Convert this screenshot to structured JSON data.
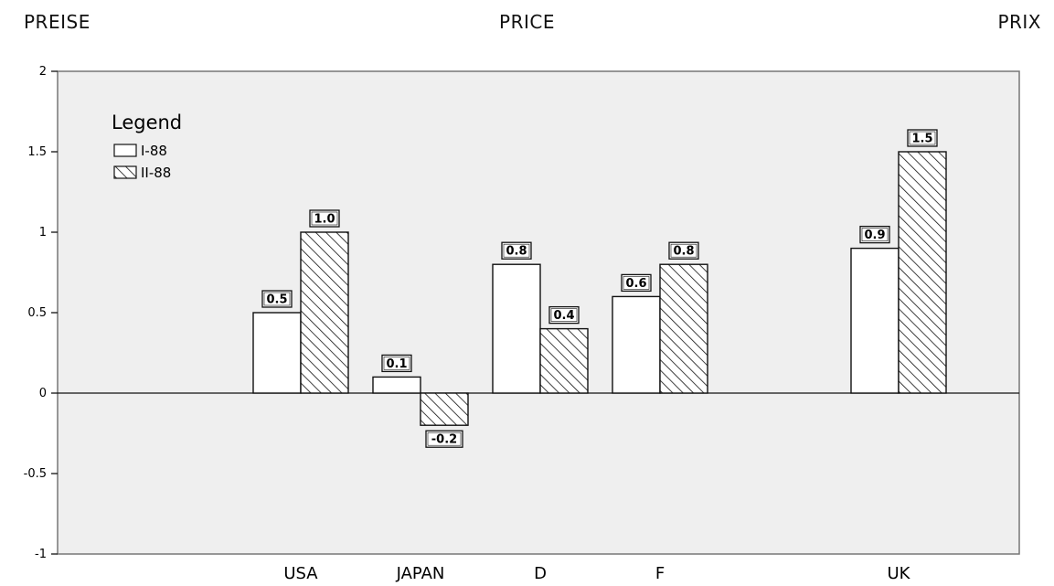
{
  "titles": {
    "left": "PREISE",
    "center": "PRICE",
    "right": "PRIX"
  },
  "chart_data": {
    "type": "bar",
    "categories": [
      "USA",
      "JAPAN",
      "D",
      "F",
      "UK"
    ],
    "series": [
      {
        "name": "I-88",
        "values": [
          0.5,
          0.1,
          0.8,
          0.6,
          0.9
        ],
        "labels": [
          "0.5",
          "0.1",
          "0.8",
          "0.6",
          "0.9"
        ]
      },
      {
        "name": "II-88",
        "values": [
          1.0,
          -0.2,
          0.4,
          0.8,
          1.5
        ],
        "labels": [
          "1.0",
          "-0.2",
          "0.4",
          "0.8",
          "1.5"
        ]
      }
    ],
    "title": "PRICE",
    "xlabel": "",
    "ylabel": "",
    "ylim": [
      -1,
      2
    ],
    "yticks": [
      -1,
      -0.5,
      0,
      0.5,
      1,
      1.5,
      2
    ],
    "ytick_labels": [
      "-1",
      "-0.5",
      "0",
      "0.5",
      "1",
      "1.5",
      "2"
    ],
    "legend_title": "Legend",
    "legend_position": "top-left",
    "grid": false,
    "colors": {
      "plot_bg": "#efefef",
      "bar_fill": "#ffffff",
      "stroke": "#111111",
      "frame": "#777777"
    }
  }
}
